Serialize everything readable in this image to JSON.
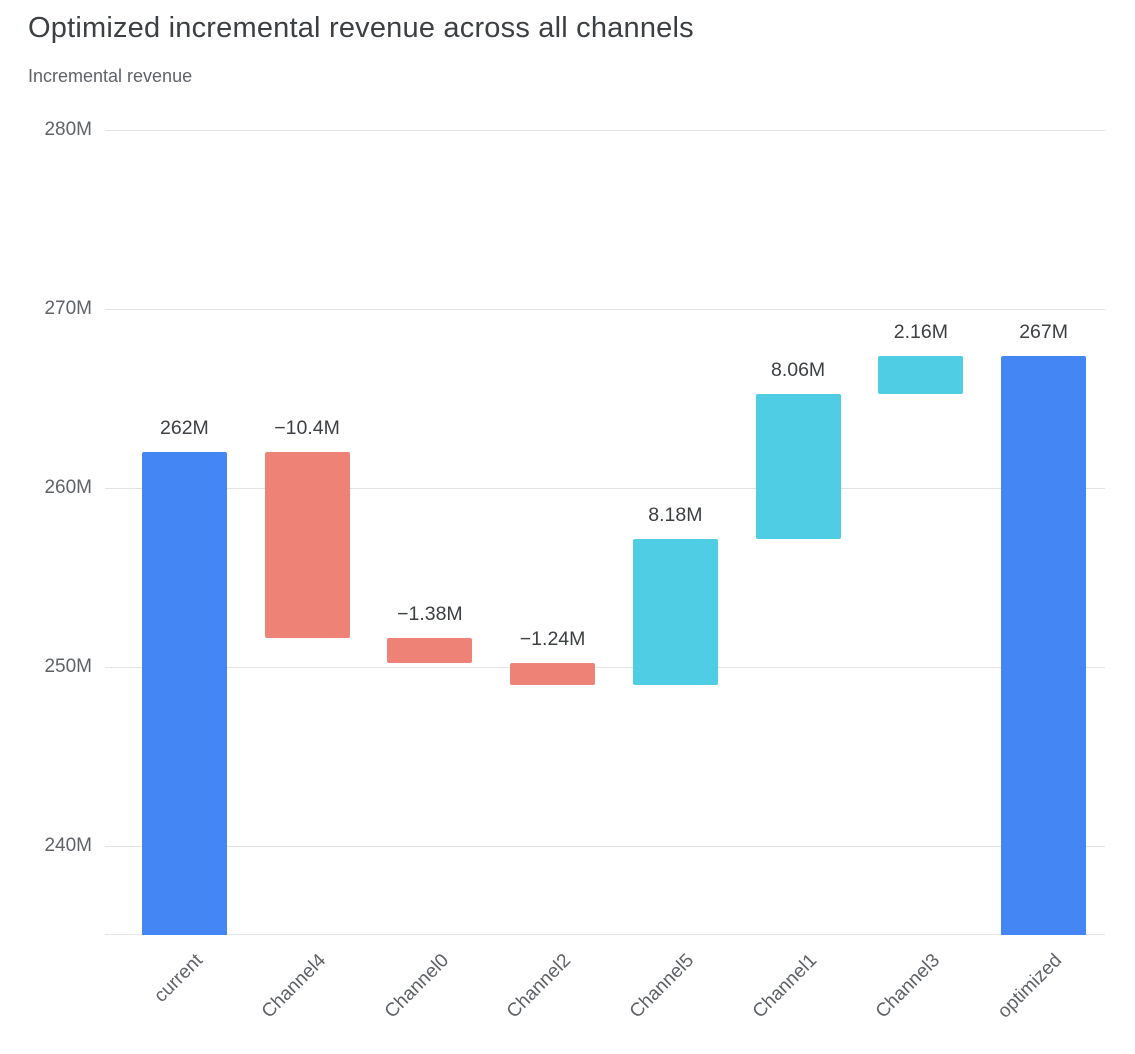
{
  "header": {
    "title": "Optimized incremental revenue across all channels",
    "subtitle": "Incremental revenue"
  },
  "chart_data": {
    "type": "bar",
    "subtype": "waterfall",
    "title": "Optimized incremental revenue across all channels",
    "ylabel": "Incremental revenue",
    "legend": "none",
    "grid": true,
    "categories": [
      "current",
      "Channel4",
      "Channel0",
      "Channel2",
      "Channel5",
      "Channel1",
      "Channel3",
      "optimized"
    ],
    "bars": [
      {
        "category": "current",
        "role": "total",
        "value": 262,
        "start": 235,
        "end": 262,
        "label": "262M"
      },
      {
        "category": "Channel4",
        "role": "decrease",
        "value": -10.4,
        "start": 262,
        "end": 251.6,
        "label": "−10.4M"
      },
      {
        "category": "Channel0",
        "role": "decrease",
        "value": -1.38,
        "start": 251.6,
        "end": 250.22,
        "label": "−1.38M"
      },
      {
        "category": "Channel2",
        "role": "decrease",
        "value": -1.24,
        "start": 250.22,
        "end": 248.98,
        "label": "−1.24M"
      },
      {
        "category": "Channel5",
        "role": "increase",
        "value": 8.18,
        "start": 248.98,
        "end": 257.16,
        "label": "8.18M"
      },
      {
        "category": "Channel1",
        "role": "increase",
        "value": 8.06,
        "start": 257.16,
        "end": 265.22,
        "label": "8.06M"
      },
      {
        "category": "Channel3",
        "role": "increase",
        "value": 2.16,
        "start": 265.22,
        "end": 267.38,
        "label": "2.16M"
      },
      {
        "category": "optimized",
        "role": "total",
        "value": 267,
        "start": 235,
        "end": 267.38,
        "label": "267M"
      }
    ],
    "y_axis": {
      "min": 235,
      "max": 280,
      "ticks": [
        {
          "value": 280,
          "label": "280M"
        },
        {
          "value": 270,
          "label": "270M"
        },
        {
          "value": 260,
          "label": "260M"
        },
        {
          "value": 250,
          "label": "250M"
        },
        {
          "value": 240,
          "label": "240M"
        }
      ]
    },
    "colors": {
      "total": "#4486f4",
      "decrease": "#ee8276",
      "increase": "#4ecde4"
    }
  }
}
